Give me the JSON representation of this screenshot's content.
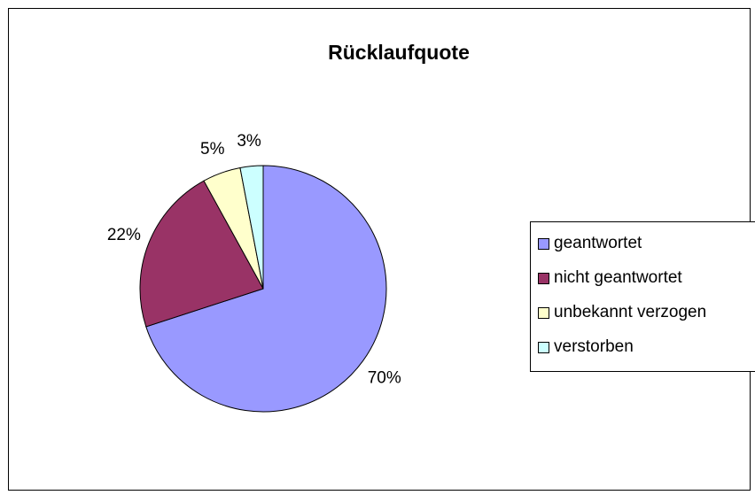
{
  "chart_data": {
    "type": "pie",
    "title": "Rücklaufquote",
    "slices": [
      {
        "label": "geantwortet",
        "value": 70,
        "data_label": "70%",
        "color": "#9999FF"
      },
      {
        "label": "nicht geantwortet",
        "value": 22,
        "data_label": "22%",
        "color": "#993366"
      },
      {
        "label": "unbekannt verzogen",
        "value": 5,
        "data_label": "5%",
        "color": "#FFFFCC"
      },
      {
        "label": "verstorben",
        "value": 3,
        "data_label": "3%",
        "color": "#CCFFFF"
      }
    ],
    "legend_position": "right"
  }
}
